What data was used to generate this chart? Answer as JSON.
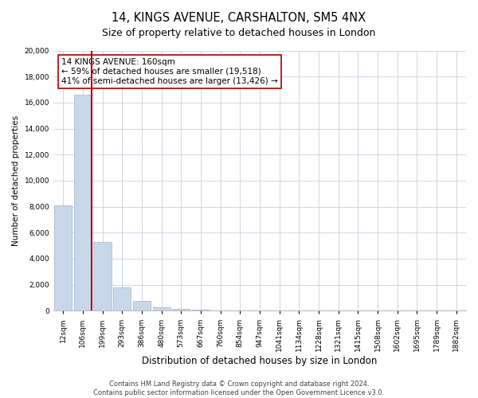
{
  "title": "14, KINGS AVENUE, CARSHALTON, SM5 4NX",
  "subtitle": "Size of property relative to detached houses in London",
  "xlabel": "Distribution of detached houses by size in London",
  "ylabel": "Number of detached properties",
  "categories": [
    "12sqm",
    "106sqm",
    "199sqm",
    "293sqm",
    "386sqm",
    "480sqm",
    "573sqm",
    "667sqm",
    "760sqm",
    "854sqm",
    "947sqm",
    "1041sqm",
    "1134sqm",
    "1228sqm",
    "1321sqm",
    "1415sqm",
    "1508sqm",
    "1602sqm",
    "1695sqm",
    "1789sqm",
    "1882sqm"
  ],
  "bar_values": [
    8100,
    16600,
    5300,
    1800,
    750,
    250,
    150,
    50,
    20,
    10,
    0,
    0,
    0,
    0,
    0,
    0,
    0,
    0,
    0,
    0,
    0
  ],
  "bar_color": "#c8d8ea",
  "bar_edge_color": "#9ab4cc",
  "vline_color": "#aa0000",
  "vline_x_idx": 1.43,
  "annotation_title": "14 KINGS AVENUE: 160sqm",
  "annotation_line1": "← 59% of detached houses are smaller (19,518)",
  "annotation_line2": "41% of semi-detached houses are larger (13,426) →",
  "ylim": [
    0,
    20000
  ],
  "yticks": [
    0,
    2000,
    4000,
    6000,
    8000,
    10000,
    12000,
    14000,
    16000,
    18000,
    20000
  ],
  "footer1": "Contains HM Land Registry data © Crown copyright and database right 2024.",
  "footer2": "Contains public sector information licensed under the Open Government Licence v3.0.",
  "bg_color": "#ffffff",
  "grid_color": "#c8d0dc",
  "title_fontsize": 10.5,
  "xlabel_fontsize": 8.5,
  "ylabel_fontsize": 7.5,
  "tick_fontsize": 6.5,
  "annot_fontsize": 7.5,
  "footer_fontsize": 6.0
}
